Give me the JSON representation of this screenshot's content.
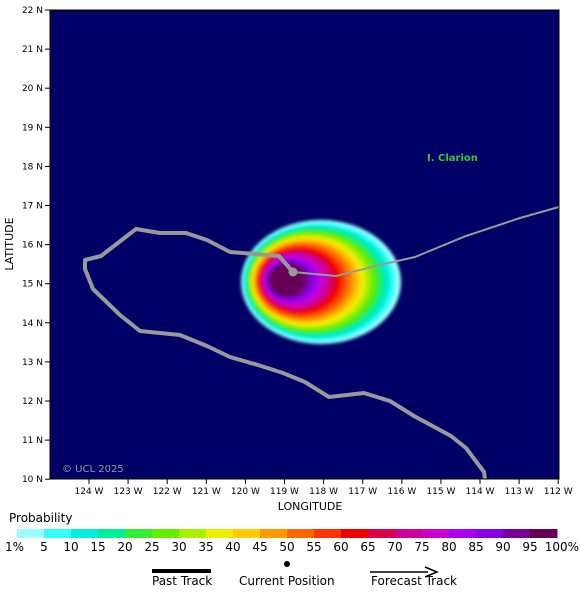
{
  "map": {
    "latitude_title": "LATITUDE",
    "longitude_title": "LONGITUDE",
    "latitude_labels": [
      "22 N",
      "21 N",
      "20 N",
      "19 N",
      "18 N",
      "17 N",
      "16 N",
      "15 N",
      "14 N",
      "13 N",
      "12 N",
      "11 N",
      "10 N"
    ],
    "longitude_labels": [
      "124 W",
      "123 W",
      "122 W",
      "121 W",
      "120 W",
      "119 W",
      "118 W",
      "117 W",
      "116 W",
      "115 W",
      "114 W",
      "113 W",
      "112 W"
    ],
    "island_label": "I. Clarion",
    "copyright": "© UCL 2025",
    "background_color": "#000066",
    "track_color": "#999999",
    "island_color": "#33cc33"
  },
  "legend": {
    "title": "Probability",
    "labels": [
      "1%",
      "5",
      "10",
      "15",
      "20",
      "25",
      "30",
      "35",
      "40",
      "45",
      "50",
      "55",
      "60",
      "65",
      "70",
      "75",
      "80",
      "85",
      "90",
      "95",
      "100%"
    ],
    "colors": [
      "#99ffff",
      "#33ffff",
      "#00eedd",
      "#00ee99",
      "#33ee33",
      "#66ee00",
      "#aaee00",
      "#eeee00",
      "#ffcc00",
      "#ff9900",
      "#ff6600",
      "#ff3300",
      "#ee0000",
      "#dd0044",
      "#cc0099",
      "#cc00cc",
      "#aa00ee",
      "#8800dd",
      "#770099",
      "#660055"
    ],
    "past_track": "Past Track",
    "current_position": "Current Position",
    "forecast_track": "Forecast Track"
  }
}
